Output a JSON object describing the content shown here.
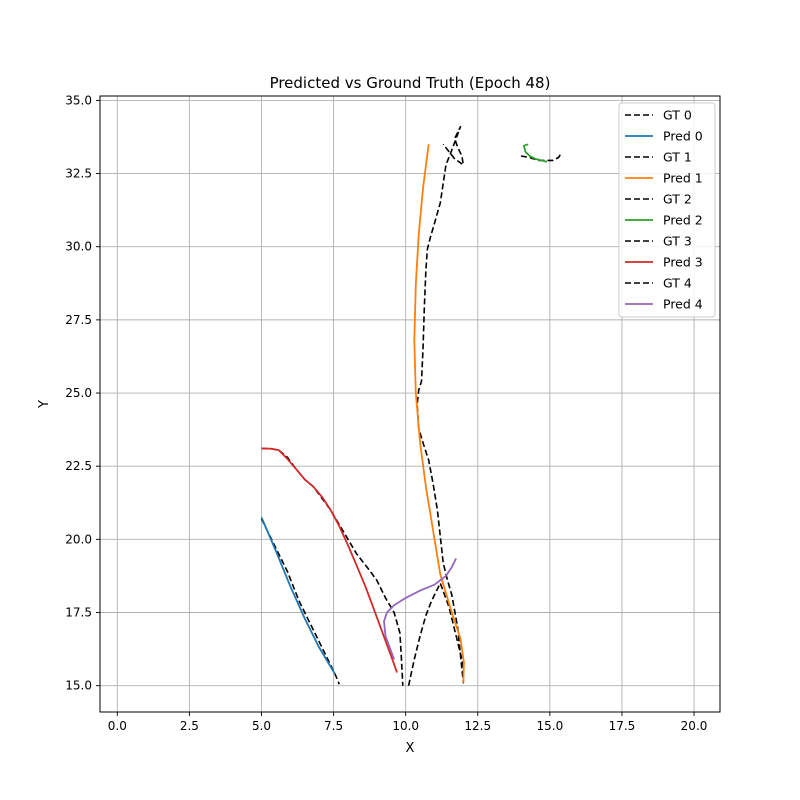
{
  "chart_data": {
    "type": "line",
    "title": "Predicted vs Ground Truth (Epoch 48)",
    "xlabel": "X",
    "ylabel": "Y",
    "xlim": [
      -0.6,
      20.9
    ],
    "ylim": [
      14.1,
      35.15
    ],
    "xticks": [
      0.0,
      2.5,
      5.0,
      7.5,
      10.0,
      12.5,
      15.0,
      17.5,
      20.0
    ],
    "xtick_labels": [
      "0.0",
      "2.5",
      "5.0",
      "7.5",
      "10.0",
      "12.5",
      "15.0",
      "17.5",
      "20.0"
    ],
    "yticks": [
      15.0,
      17.5,
      20.0,
      22.5,
      25.0,
      27.5,
      30.0,
      32.5,
      35.0
    ],
    "ytick_labels": [
      "15.0",
      "17.5",
      "20.0",
      "22.5",
      "25.0",
      "27.5",
      "30.0",
      "32.5",
      "35.0"
    ],
    "grid": true,
    "legend_position": "top-right",
    "series": [
      {
        "name": "GT 0",
        "color": "#000000",
        "dashed": true,
        "x": [
          5.0,
          5.4,
          5.9,
          6.3,
          6.7,
          7.0,
          7.3,
          7.55,
          7.7
        ],
        "y": [
          20.7,
          19.9,
          18.9,
          17.9,
          17.1,
          16.5,
          15.9,
          15.4,
          15.05
        ]
      },
      {
        "name": "Pred 0",
        "color": "#1f77b4",
        "dashed": false,
        "x": [
          5.0,
          5.5,
          6.0,
          6.5,
          7.0,
          7.55
        ],
        "y": [
          20.75,
          19.6,
          18.4,
          17.3,
          16.3,
          15.4
        ]
      },
      {
        "name": "GT 1",
        "color": "#000000",
        "dashed": true,
        "x": [
          10.1,
          10.3,
          10.5,
          10.7,
          10.9,
          11.2,
          11.5,
          11.8,
          12.0,
          12.0,
          11.8,
          11.6,
          11.45,
          11.3,
          11.2,
          11.1,
          10.95,
          10.8,
          10.6,
          10.45,
          10.4,
          10.45,
          10.55,
          10.6,
          10.65,
          10.7,
          10.75,
          10.85,
          11.0,
          11.2,
          11.4,
          11.6,
          11.9,
          11.7,
          11.8,
          11.95,
          12.0,
          11.7,
          11.3
        ],
        "y": [
          15.0,
          15.9,
          16.7,
          17.4,
          17.9,
          18.5,
          17.7,
          16.5,
          15.7,
          15.1,
          17.0,
          18.1,
          18.6,
          19.2,
          20.1,
          21.0,
          21.9,
          22.7,
          23.3,
          23.8,
          24.6,
          25.1,
          25.4,
          26.5,
          28.0,
          29.2,
          29.9,
          30.3,
          30.8,
          31.5,
          32.8,
          33.3,
          34.1,
          33.7,
          33.4,
          33.1,
          32.8,
          33.0,
          33.5
        ]
      },
      {
        "name": "Pred 1",
        "color": "#ff7f0e",
        "dashed": false,
        "x": [
          12.0,
          12.02,
          11.9,
          11.6,
          11.2,
          10.95,
          10.7,
          10.5,
          10.35,
          10.3,
          10.35,
          10.45,
          10.6,
          10.8
        ],
        "y": [
          15.1,
          15.8,
          16.6,
          17.5,
          18.8,
          20.3,
          21.8,
          23.3,
          25.0,
          26.8,
          28.7,
          30.4,
          32.0,
          33.5
        ]
      },
      {
        "name": "GT 2",
        "color": "#000000",
        "dashed": true,
        "x": [
          14.0,
          14.3,
          14.6,
          14.9,
          15.1,
          15.3,
          15.4
        ],
        "y": [
          33.1,
          33.05,
          32.95,
          32.95,
          32.95,
          33.05,
          33.2
        ]
      },
      {
        "name": "Pred 2",
        "color": "#2ca02c",
        "dashed": false,
        "x": [
          14.25,
          14.1,
          14.15,
          14.3,
          14.5,
          14.7,
          14.9
        ],
        "y": [
          33.5,
          33.45,
          33.25,
          33.1,
          33.0,
          32.95,
          32.9
        ]
      },
      {
        "name": "GT 3",
        "color": "#000000",
        "dashed": true,
        "x": [
          5.0,
          5.3,
          5.6,
          5.9,
          6.2,
          6.5,
          6.8,
          7.1,
          7.4,
          7.7,
          8.0,
          8.3,
          8.7,
          9.0,
          9.3,
          9.6,
          9.8,
          9.85,
          9.9
        ],
        "y": [
          23.1,
          23.1,
          23.05,
          22.8,
          22.4,
          22.05,
          21.8,
          21.4,
          21.0,
          20.5,
          20.0,
          19.5,
          19.0,
          18.6,
          18.0,
          17.5,
          16.8,
          16.0,
          15.0
        ]
      },
      {
        "name": "Pred 3",
        "color": "#d62728",
        "dashed": false,
        "x": [
          5.0,
          5.3,
          5.6,
          5.9,
          6.2,
          6.5,
          6.8,
          7.1,
          7.4,
          7.7,
          8.0,
          8.3,
          8.6,
          8.9,
          9.2,
          9.5,
          9.7
        ],
        "y": [
          23.1,
          23.1,
          23.05,
          22.75,
          22.4,
          22.05,
          21.8,
          21.45,
          21.0,
          20.45,
          19.8,
          19.1,
          18.4,
          17.6,
          16.8,
          16.0,
          15.45
        ]
      },
      {
        "name": "GT 4",
        "color": "#000000",
        "dashed": true,
        "x": [],
        "y": []
      },
      {
        "name": "Pred 4",
        "color": "#9467bd",
        "dashed": false,
        "x": [
          9.6,
          9.3,
          9.25,
          9.35,
          9.6,
          10.0,
          10.5,
          11.0,
          11.4,
          11.6,
          11.75
        ],
        "y": [
          15.9,
          16.7,
          17.2,
          17.5,
          17.75,
          18.0,
          18.25,
          18.45,
          18.75,
          19.05,
          19.35
        ]
      }
    ]
  }
}
